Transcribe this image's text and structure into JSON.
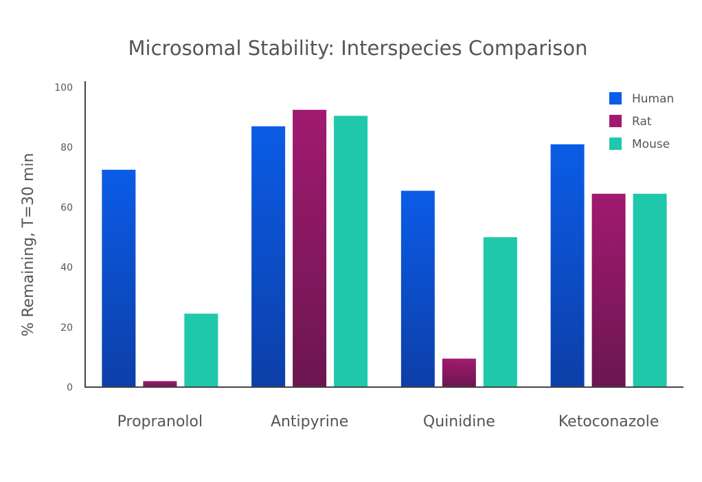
{
  "chart_data": {
    "type": "bar",
    "title": "Microsomal Stability: Interspecies Comparison",
    "xlabel": "",
    "ylabel": "% Remaining, T=30 min",
    "ylim": [
      0,
      100
    ],
    "yticks": [
      0,
      20,
      40,
      60,
      80,
      100
    ],
    "categories": [
      "Propranolol",
      "Antipyrine",
      "Quinidine",
      "Ketoconazole"
    ],
    "series": [
      {
        "name": "Human",
        "values": [
          72.5,
          87,
          65.5,
          81
        ],
        "color": "#0b5ce6",
        "color_dark": "#0d3fa8"
      },
      {
        "name": "Rat",
        "values": [
          2,
          92.5,
          9.5,
          64.5
        ],
        "color": "#a11a70",
        "color_dark": "#6b1650"
      },
      {
        "name": "Mouse",
        "values": [
          24.5,
          90.5,
          50,
          64.5
        ],
        "color": "#1fc8ab",
        "color_dark": "#1fc8ab"
      }
    ],
    "grid": false,
    "legend": "top-right"
  }
}
